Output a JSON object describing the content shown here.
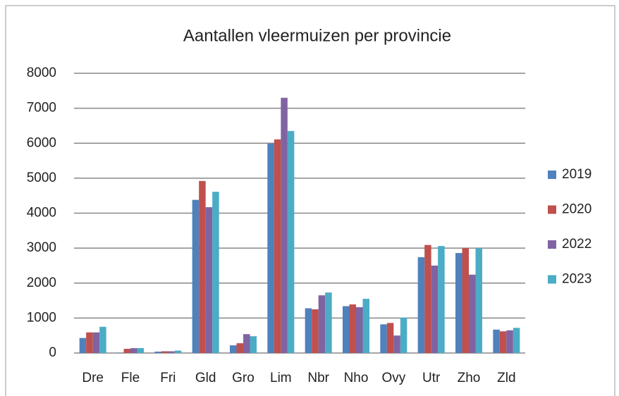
{
  "chart_data": {
    "type": "bar",
    "title": "Aantallen vleermuizen per provincie",
    "categories": [
      "Dre",
      "Fle",
      "Fri",
      "Gld",
      "Gro",
      "Lim",
      "Nbr",
      "Nho",
      "Ovy",
      "Utr",
      "Zho",
      "Zld"
    ],
    "series": [
      {
        "name": "2019",
        "color": "#4f81bd",
        "values": [
          430,
          10,
          40,
          4380,
          220,
          5990,
          1280,
          1340,
          820,
          2740,
          2860,
          670
        ]
      },
      {
        "name": "2020",
        "color": "#c0504d",
        "values": [
          590,
          120,
          50,
          4920,
          280,
          6110,
          1250,
          1390,
          860,
          3090,
          3000,
          620
        ]
      },
      {
        "name": "2022",
        "color": "#8064a2",
        "values": [
          590,
          140,
          50,
          4170,
          540,
          7300,
          1650,
          1310,
          500,
          2500,
          2240,
          650
        ]
      },
      {
        "name": "2023",
        "color": "#4bacc6",
        "values": [
          750,
          140,
          70,
          4610,
          480,
          6350,
          1730,
          1550,
          1010,
          3060,
          3000,
          720
        ]
      }
    ],
    "ylim": [
      0,
      8000
    ],
    "yticks": [
      0,
      1000,
      2000,
      3000,
      4000,
      5000,
      6000,
      7000,
      8000
    ],
    "grid": true,
    "legend": "right"
  }
}
